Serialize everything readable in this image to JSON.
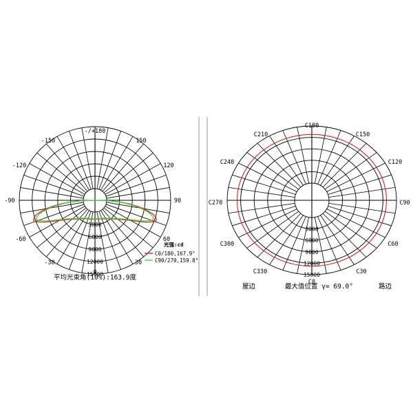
{
  "chart_data": [
    {
      "type": "polar",
      "subtype": "luminous-intensity-distribution",
      "angle_labels": [
        "-/+180",
        "-150",
        "150",
        "-120",
        "120",
        "-90",
        "90",
        "-60",
        "60",
        "-30",
        "30",
        "0"
      ],
      "radial_labels": [
        "3000",
        "6000",
        "9000",
        "12000",
        "15000"
      ],
      "radial_unit_label": "光强:cd",
      "rmax": 15000,
      "grid": true,
      "series": [
        {
          "name": "C0/180,167.9°",
          "color": "#e02020",
          "angle": [
            -90,
            -88,
            -86,
            -84,
            -82,
            -80,
            -78,
            -76,
            -74,
            -72,
            -71,
            -70,
            -68,
            -66,
            -64,
            -62,
            -60,
            -56,
            -50,
            -40,
            -30,
            -20,
            -10,
            0,
            10,
            20,
            30,
            40,
            50,
            56,
            60,
            62,
            64,
            66,
            68,
            70,
            71,
            72,
            74,
            76,
            78,
            80,
            82,
            84,
            86,
            88,
            90
          ],
          "intensity": [
            0,
            2900,
            5000,
            6800,
            8300,
            9700,
            10900,
            11900,
            12500,
            12800,
            12800,
            12600,
            11800,
            10900,
            9900,
            9000,
            8200,
            7100,
            6000,
            4900,
            4300,
            4000,
            3900,
            3850,
            3900,
            4000,
            4300,
            4900,
            6000,
            7100,
            8200,
            9000,
            9900,
            10900,
            11800,
            12600,
            12800,
            12800,
            12500,
            11900,
            10900,
            9700,
            8300,
            6800,
            5000,
            2900,
            0
          ]
        },
        {
          "name": "C90/270,159.8°",
          "color": "#33dd33",
          "angle": [
            -90,
            -88,
            -86,
            -84,
            -82,
            -80,
            -78,
            -76,
            -74,
            -72,
            -71,
            -70,
            -68,
            -66,
            -64,
            -62,
            -60,
            -56,
            -50,
            -40,
            -30,
            -20,
            -10,
            0,
            10,
            20,
            30,
            40,
            50,
            56,
            60,
            62,
            64,
            66,
            68,
            70,
            71,
            72,
            74,
            76,
            78,
            80,
            82,
            84,
            86,
            88,
            90
          ],
          "intensity": [
            0,
            2700,
            4600,
            6300,
            7800,
            9100,
            10300,
            11300,
            11900,
            12200,
            12200,
            12000,
            11200,
            10300,
            9400,
            8500,
            7800,
            6800,
            5800,
            4800,
            4200,
            3900,
            3800,
            3780,
            3800,
            3900,
            4200,
            4800,
            5800,
            6800,
            7800,
            8500,
            9400,
            10300,
            11200,
            12000,
            12200,
            12200,
            11900,
            11300,
            10300,
            9100,
            7800,
            6300,
            4600,
            2700,
            0
          ]
        }
      ],
      "caption": "平均光束角(10%):163.9度"
    },
    {
      "type": "polar",
      "subtype": "c-plane-iso-intensity",
      "angle_labels": [
        "C180",
        "C150",
        "C210",
        "C120",
        "C240",
        "C270",
        "C90",
        "C300",
        "C60",
        "C330",
        "C30",
        "C0"
      ],
      "radial_labels": [
        "3000",
        "6000",
        "9000",
        "12000",
        "15000"
      ],
      "series": [
        {
          "name": "γ= 69.0°",
          "color": "#e02020",
          "gamma": 69.0
        }
      ],
      "footer": {
        "left": "屋边",
        "center": "最大值位置 γ= 69.0°",
        "right": "路边"
      }
    }
  ],
  "colors": {
    "grid": "#000000",
    "divider": "#999999",
    "red": "#e02020",
    "green": "#33dd33"
  }
}
